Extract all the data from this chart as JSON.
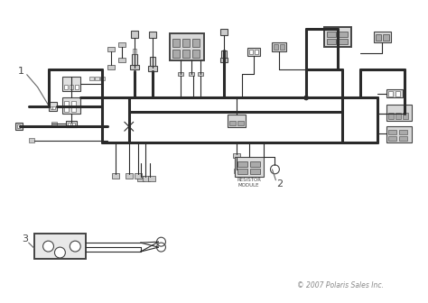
{
  "bg_color": "#ffffff",
  "line_color": "#2a2a2a",
  "comp_color": "#444444",
  "copyright": "© 2007 Polaris Sales Inc.",
  "label_1": "1",
  "label_2": "2",
  "label_3": "3",
  "resistor_label": "RESISTOR\nMODULE",
  "fig_width": 4.74,
  "fig_height": 3.36,
  "dpi": 100,
  "lw_thick": 2.2,
  "lw_med": 1.4,
  "lw_thin": 0.8,
  "lw_xtra": 0.5
}
